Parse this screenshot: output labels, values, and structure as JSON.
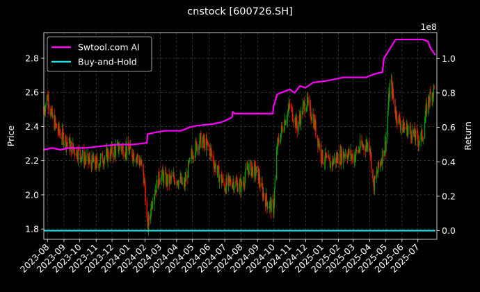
{
  "chart_data": {
    "type": "line",
    "title": "cnstock [600726.SH]",
    "xlabel": "",
    "ylabel_left": "Price",
    "ylabel_right": "Return",
    "right_axis_offset_text": "1e8",
    "x_tick_labels": [
      "2023-08",
      "2023-09",
      "2023-10",
      "2023-11",
      "2023-12",
      "2024-01",
      "2024-02",
      "2024-03",
      "2024-04",
      "2024-05",
      "2024-06",
      "2024-07",
      "2024-08",
      "2024-09",
      "2024-10",
      "2024-11",
      "2024-12",
      "2025-01",
      "2025-02",
      "2025-03",
      "2025-04",
      "2025-05",
      "2025-06",
      "2025-07"
    ],
    "y_left_ticks": [
      "1.8",
      "2.0",
      "2.2",
      "2.4",
      "2.6",
      "2.8"
    ],
    "y_right_ticks": [
      "0.0",
      "0.2",
      "0.4",
      "0.6",
      "0.8",
      "1.0"
    ],
    "ylim_left": [
      1.74,
      2.95
    ],
    "ylim_right": [
      -0.05,
      1.15
    ],
    "xlim": [
      "2023-07-25",
      "2025-08-06"
    ],
    "grid": true,
    "legend_position": "upper-left",
    "colors": {
      "background": "#000000",
      "up_candle": "#00a000",
      "down_candle": "#ff1a00",
      "strategy": "#ff00ff",
      "benchmark": "#22e0e0",
      "grid": "#555555",
      "axis": "#ffffff"
    },
    "series": [
      {
        "name": "Swtool.com AI",
        "axis": "right",
        "x": [
          "2023-07-25",
          "2023-08-10",
          "2023-08-25",
          "2023-09-10",
          "2023-10-10",
          "2023-11-10",
          "2023-12-10",
          "2024-01-10",
          "2024-02-05",
          "2024-02-06",
          "2024-02-20",
          "2024-03-10",
          "2024-04-10",
          "2024-04-25",
          "2024-05-10",
          "2024-06-10",
          "2024-06-25",
          "2024-07-10",
          "2024-07-15",
          "2024-07-16",
          "2024-07-20",
          "2024-08-10",
          "2024-09-10",
          "2024-09-30",
          "2024-10-01",
          "2024-10-08",
          "2024-10-15",
          "2024-11-01",
          "2024-11-10",
          "2024-11-20",
          "2024-12-01",
          "2024-12-15",
          "2025-01-10",
          "2025-02-10",
          "2025-03-10",
          "2025-03-25",
          "2025-04-10",
          "2025-04-25",
          "2025-04-28",
          "2025-05-10",
          "2025-05-20",
          "2025-06-10",
          "2025-07-10",
          "2025-07-20",
          "2025-07-25",
          "2025-08-03"
        ],
        "values": [
          0.47,
          0.48,
          0.47,
          0.48,
          0.48,
          0.49,
          0.5,
          0.5,
          0.51,
          0.56,
          0.57,
          0.58,
          0.58,
          0.6,
          0.61,
          0.62,
          0.63,
          0.65,
          0.66,
          0.69,
          0.68,
          0.68,
          0.68,
          0.68,
          0.72,
          0.79,
          0.8,
          0.82,
          0.8,
          0.84,
          0.83,
          0.86,
          0.87,
          0.89,
          0.89,
          0.89,
          0.91,
          0.92,
          1.0,
          1.06,
          1.11,
          1.11,
          1.11,
          1.1,
          1.06,
          1.02
        ]
      },
      {
        "name": "Buy-and-Hold",
        "axis": "right",
        "x": [
          "2023-07-25",
          "2025-08-03"
        ],
        "values": [
          0.0,
          0.0
        ]
      },
      {
        "name": "Price",
        "axis": "left",
        "x": [
          "2023-07-25",
          "2023-08-01",
          "2023-08-10",
          "2023-08-20",
          "2023-09-01",
          "2023-09-15",
          "2023-10-01",
          "2023-10-15",
          "2023-11-01",
          "2023-11-15",
          "2023-12-01",
          "2023-12-15",
          "2024-01-01",
          "2024-01-15",
          "2024-01-25",
          "2024-02-01",
          "2024-02-06",
          "2024-02-15",
          "2024-03-01",
          "2024-03-15",
          "2024-04-01",
          "2024-04-15",
          "2024-05-01",
          "2024-05-15",
          "2024-06-01",
          "2024-06-15",
          "2024-07-01",
          "2024-07-15",
          "2024-08-01",
          "2024-08-15",
          "2024-09-01",
          "2024-09-10",
          "2024-09-20",
          "2024-10-01",
          "2024-10-08",
          "2024-10-20",
          "2024-11-01",
          "2024-11-15",
          "2024-12-01",
          "2024-12-15",
          "2025-01-01",
          "2025-01-15",
          "2025-02-01",
          "2025-02-15",
          "2025-03-01",
          "2025-03-15",
          "2025-04-01",
          "2025-04-08",
          "2025-04-20",
          "2025-05-01",
          "2025-05-10",
          "2025-05-20",
          "2025-06-01",
          "2025-06-15",
          "2025-07-01",
          "2025-07-10",
          "2025-07-20",
          "2025-08-01"
        ],
        "values": [
          2.5,
          2.58,
          2.45,
          2.38,
          2.33,
          2.28,
          2.24,
          2.2,
          2.18,
          2.22,
          2.25,
          2.28,
          2.26,
          2.23,
          2.18,
          2.05,
          1.8,
          1.98,
          2.12,
          2.08,
          2.1,
          2.05,
          2.25,
          2.32,
          2.28,
          2.15,
          2.05,
          2.08,
          2.05,
          2.16,
          2.13,
          2.02,
          1.95,
          1.92,
          2.28,
          2.42,
          2.52,
          2.4,
          2.55,
          2.45,
          2.22,
          2.18,
          2.22,
          2.25,
          2.22,
          2.28,
          2.3,
          2.05,
          2.18,
          2.3,
          2.68,
          2.48,
          2.4,
          2.38,
          2.32,
          2.35,
          2.55,
          2.62
        ]
      }
    ]
  }
}
